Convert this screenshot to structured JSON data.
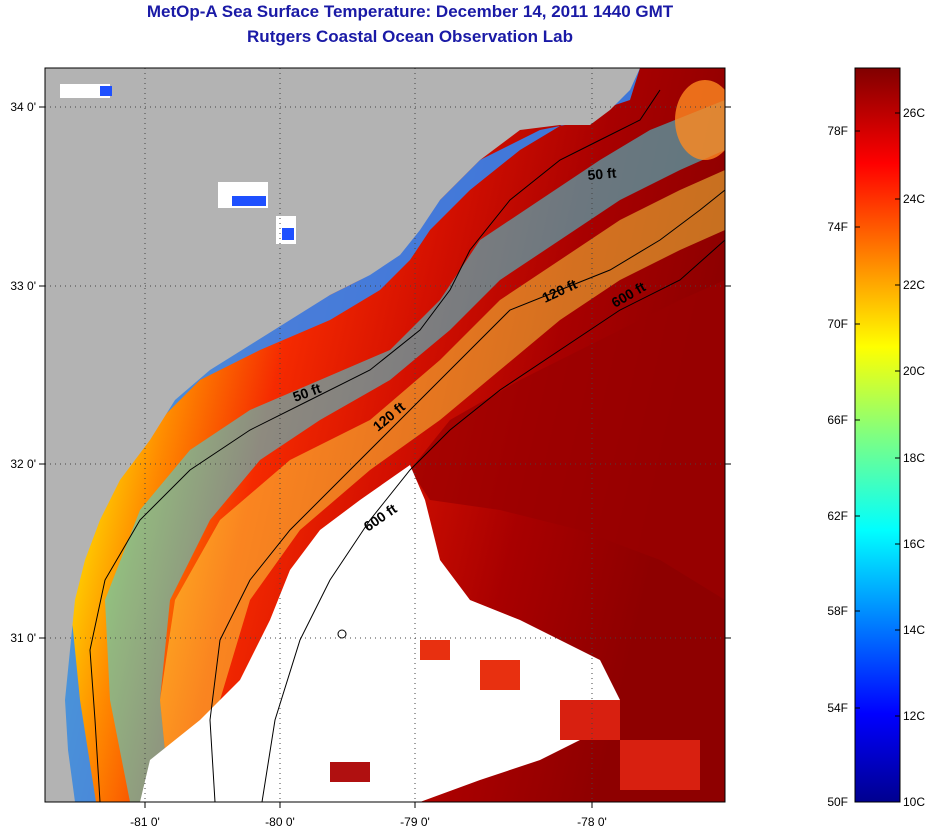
{
  "title": "MetOp-A Sea Surface Temperature:  December 14, 2011 1440 GMT",
  "subtitle": "Rutgers Coastal Ocean Observation Lab",
  "map": {
    "lon_ticks": [
      "-81 0'",
      "-80 0'",
      "-79 0'",
      "-78 0'"
    ],
    "lat_ticks": [
      "34 0'",
      "33 0'",
      "32 0'",
      "31 0'"
    ],
    "contours": [
      {
        "label": "50 ft",
        "depth_ft": 50
      },
      {
        "label": "50 ft",
        "depth_ft": 50
      },
      {
        "label": "120 ft",
        "depth_ft": 120
      },
      {
        "label": "120 ft",
        "depth_ft": 120
      },
      {
        "label": "600 ft",
        "depth_ft": 600
      },
      {
        "label": "600 ft",
        "depth_ft": 600
      }
    ],
    "colors": {
      "land": "#b3b3b3",
      "cloud": "#ffffff"
    }
  },
  "colorbar": {
    "fahrenheit": [
      "78F",
      "74F",
      "70F",
      "66F",
      "62F",
      "58F",
      "54F",
      "50F"
    ],
    "celsius": [
      "26C",
      "24C",
      "22C",
      "20C",
      "18C",
      "16C",
      "14C",
      "12C",
      "10C"
    ],
    "min_c": 10,
    "max_c": 27
  }
}
